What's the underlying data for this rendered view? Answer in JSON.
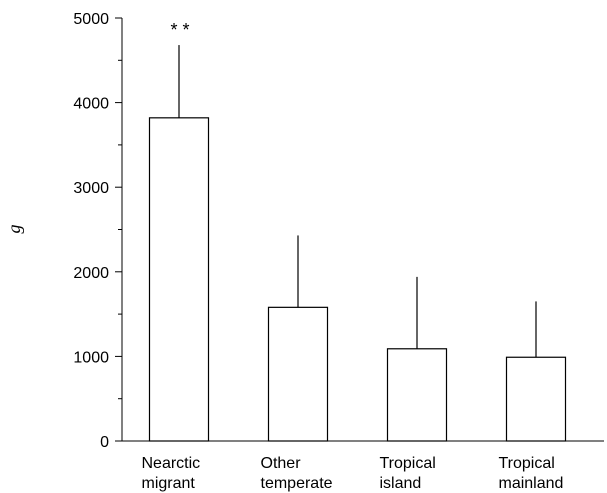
{
  "chart_data": {
    "type": "bar",
    "categories": [
      [
        "Nearctic",
        "migrant"
      ],
      [
        "Other",
        "temperate"
      ],
      [
        "Tropical",
        "island"
      ],
      [
        "Tropical",
        "mainland"
      ]
    ],
    "values": [
      3820,
      1580,
      1090,
      990
    ],
    "error_upper": [
      4680,
      2430,
      1940,
      1650
    ],
    "annotations": [
      {
        "category_index": 0,
        "text": "* *"
      }
    ],
    "xlabel": "",
    "ylabel": "g",
    "ylim": [
      0,
      5000
    ],
    "yticks": [
      0,
      1000,
      2000,
      3000,
      4000,
      5000
    ],
    "ytick_labels": [
      "0",
      "1000",
      "2000",
      "3000",
      "4000",
      "5000"
    ],
    "grid": false
  }
}
